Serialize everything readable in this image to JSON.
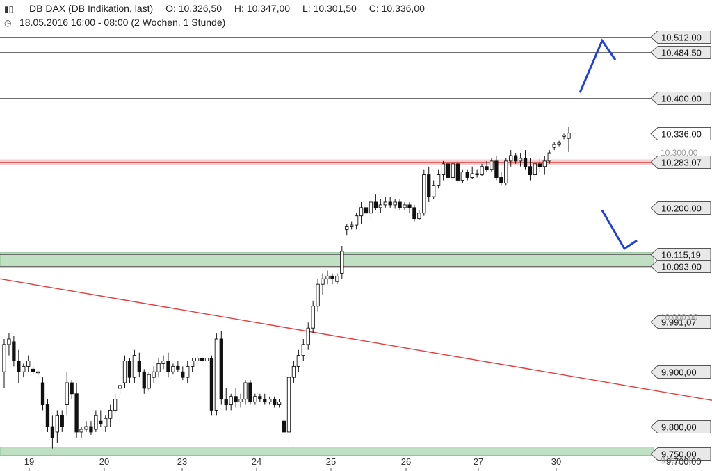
{
  "header": {
    "title": "DB DAX (DB Indikation, last)",
    "open": "O: 10.326,50",
    "high": "H: 10.347,00",
    "low": "L: 10.301,50",
    "close": "C: 10.336,00",
    "timeframe": "18.05.2016 16:00 - 08:00 (2 Wochen, 1 Stunde)",
    "chart_icon": "candlestick-icon",
    "clock_icon": "clock-icon"
  },
  "chart_data": {
    "type": "candlestick",
    "ylim": [
      9700,
      10540
    ],
    "x_ticks": [
      "19",
      "20",
      "23",
      "24",
      "25",
      "26",
      "27",
      "30"
    ],
    "level_lines": [
      {
        "value": 10512,
        "label": "10.512,00"
      },
      {
        "value": 10484.5,
        "label": "10.484,50"
      },
      {
        "value": 10400,
        "label": "10.400,00"
      },
      {
        "value": 10336,
        "label": "10.336,00",
        "style": "current"
      },
      {
        "value": 10283.07,
        "label": "10.283,07",
        "style": "resistance-red"
      },
      {
        "value": 10200,
        "label": "10.200,00"
      },
      {
        "value": 10115.19,
        "label": "10.115,19"
      },
      {
        "value": 10093,
        "label": "10.093,00"
      },
      {
        "value": 9991.07,
        "label": "9.991,07"
      },
      {
        "value": 9900,
        "label": "9.900,00"
      },
      {
        "value": 9800,
        "label": "9.800,00"
      },
      {
        "value": 9750,
        "label": "9.750,00"
      }
    ],
    "ghost_labels": [
      "10.300,00",
      "10.000,00",
      "9.737,00"
    ],
    "bottom_axis_label": "9.700,00",
    "support_zones": [
      {
        "from": 10093,
        "to": 10115.19
      },
      {
        "from": 9750,
        "to": 9760
      }
    ],
    "trendline": {
      "x": [
        0,
        1024
      ],
      "y": [
        10070,
        9848
      ]
    },
    "arrows": [
      {
        "direction": "up",
        "points": [
          [
            834,
            10410
          ],
          [
            866,
            10505
          ],
          [
            885,
            10470
          ]
        ]
      },
      {
        "direction": "down",
        "points": [
          [
            866,
            10195
          ],
          [
            898,
            10125
          ],
          [
            916,
            10140
          ]
        ]
      }
    ],
    "candles": [
      {
        "o": 9900,
        "h": 9960,
        "l": 9870,
        "c": 9950
      },
      {
        "o": 9950,
        "h": 9970,
        "l": 9930,
        "c": 9960
      },
      {
        "o": 9955,
        "h": 9965,
        "l": 9910,
        "c": 9920
      },
      {
        "o": 9920,
        "h": 9940,
        "l": 9880,
        "c": 9900
      },
      {
        "o": 9900,
        "h": 9915,
        "l": 9890,
        "c": 9910
      },
      {
        "o": 9910,
        "h": 9930,
        "l": 9900,
        "c": 9920
      },
      {
        "o": 9905,
        "h": 9910,
        "l": 9895,
        "c": 9900
      },
      {
        "o": 9900,
        "h": 9905,
        "l": 9890,
        "c": 9900
      },
      {
        "o": 9880,
        "h": 9890,
        "l": 9830,
        "c": 9840
      },
      {
        "o": 9840,
        "h": 9850,
        "l": 9790,
        "c": 9800
      },
      {
        "o": 9800,
        "h": 9820,
        "l": 9760,
        "c": 9780
      },
      {
        "o": 9790,
        "h": 9830,
        "l": 9770,
        "c": 9820
      },
      {
        "o": 9820,
        "h": 9830,
        "l": 9790,
        "c": 9800
      },
      {
        "o": 9840,
        "h": 9900,
        "l": 9820,
        "c": 9880
      },
      {
        "o": 9880,
        "h": 9885,
        "l": 9850,
        "c": 9860
      },
      {
        "o": 9860,
        "h": 9880,
        "l": 9780,
        "c": 9790
      },
      {
        "o": 9790,
        "h": 9800,
        "l": 9780,
        "c": 9795
      },
      {
        "o": 9795,
        "h": 9810,
        "l": 9790,
        "c": 9800
      },
      {
        "o": 9800,
        "h": 9810,
        "l": 9785,
        "c": 9790
      },
      {
        "o": 9795,
        "h": 9830,
        "l": 9790,
        "c": 9820
      },
      {
        "o": 9810,
        "h": 9830,
        "l": 9800,
        "c": 9805
      },
      {
        "o": 9800,
        "h": 9820,
        "l": 9790,
        "c": 9815
      },
      {
        "o": 9815,
        "h": 9840,
        "l": 9800,
        "c": 9830
      },
      {
        "o": 9830,
        "h": 9860,
        "l": 9825,
        "c": 9850
      },
      {
        "o": 9870,
        "h": 9880,
        "l": 9860,
        "c": 9875
      },
      {
        "o": 9880,
        "h": 9930,
        "l": 9870,
        "c": 9920
      },
      {
        "o": 9920,
        "h": 9925,
        "l": 9880,
        "c": 9890
      },
      {
        "o": 9890,
        "h": 9940,
        "l": 9880,
        "c": 9930
      },
      {
        "o": 9920,
        "h": 9935,
        "l": 9890,
        "c": 9900
      },
      {
        "o": 9900,
        "h": 9905,
        "l": 9860,
        "c": 9870
      },
      {
        "o": 9870,
        "h": 9900,
        "l": 9865,
        "c": 9895
      },
      {
        "o": 9890,
        "h": 9910,
        "l": 9880,
        "c": 9900
      },
      {
        "o": 9900,
        "h": 9925,
        "l": 9890,
        "c": 9915
      },
      {
        "o": 9915,
        "h": 9930,
        "l": 9905,
        "c": 9920
      },
      {
        "o": 9920,
        "h": 9935,
        "l": 9890,
        "c": 9900
      },
      {
        "o": 9900,
        "h": 9915,
        "l": 9895,
        "c": 9910
      },
      {
        "o": 9910,
        "h": 9920,
        "l": 9900,
        "c": 9905
      },
      {
        "o": 9900,
        "h": 9910,
        "l": 9885,
        "c": 9890
      },
      {
        "o": 9890,
        "h": 9920,
        "l": 9880,
        "c": 9910
      },
      {
        "o": 9910,
        "h": 9925,
        "l": 9900,
        "c": 9920
      },
      {
        "o": 9920,
        "h": 9930,
        "l": 9915,
        "c": 9925
      },
      {
        "o": 9925,
        "h": 9935,
        "l": 9915,
        "c": 9920
      },
      {
        "o": 9920,
        "h": 9930,
        "l": 9915,
        "c": 9925
      },
      {
        "o": 9925,
        "h": 9930,
        "l": 9820,
        "c": 9830
      },
      {
        "o": 9830,
        "h": 9970,
        "l": 9820,
        "c": 9960
      },
      {
        "o": 9960,
        "h": 9975,
        "l": 9840,
        "c": 9850
      },
      {
        "o": 9850,
        "h": 9870,
        "l": 9830,
        "c": 9840
      },
      {
        "o": 9840,
        "h": 9860,
        "l": 9830,
        "c": 9855
      },
      {
        "o": 9855,
        "h": 9870,
        "l": 9835,
        "c": 9845
      },
      {
        "o": 9845,
        "h": 9860,
        "l": 9835,
        "c": 9850
      },
      {
        "o": 9850,
        "h": 9885,
        "l": 9840,
        "c": 9880
      },
      {
        "o": 9880,
        "h": 9885,
        "l": 9840,
        "c": 9845
      },
      {
        "o": 9845,
        "h": 9860,
        "l": 9840,
        "c": 9855
      },
      {
        "o": 9855,
        "h": 9860,
        "l": 9845,
        "c": 9850
      },
      {
        "o": 9850,
        "h": 9860,
        "l": 9840,
        "c": 9845
      },
      {
        "o": 9845,
        "h": 9855,
        "l": 9840,
        "c": 9850
      },
      {
        "o": 9850,
        "h": 9855,
        "l": 9835,
        "c": 9840
      },
      {
        "o": 9840,
        "h": 9850,
        "l": 9835,
        "c": 9845
      },
      {
        "o": 9810,
        "h": 9815,
        "l": 9780,
        "c": 9790
      },
      {
        "o": 9790,
        "h": 9900,
        "l": 9770,
        "c": 9890
      },
      {
        "o": 9890,
        "h": 9920,
        "l": 9880,
        "c": 9910
      },
      {
        "o": 9910,
        "h": 9940,
        "l": 9900,
        "c": 9930
      },
      {
        "o": 9930,
        "h": 9960,
        "l": 9920,
        "c": 9950
      },
      {
        "o": 9950,
        "h": 9990,
        "l": 9940,
        "c": 9980
      },
      {
        "o": 9980,
        "h": 10030,
        "l": 9970,
        "c": 10020
      },
      {
        "o": 10020,
        "h": 10070,
        "l": 10010,
        "c": 10060
      },
      {
        "o": 10060,
        "h": 10080,
        "l": 10040,
        "c": 10070
      },
      {
        "o": 10070,
        "h": 10085,
        "l": 10060,
        "c": 10075
      },
      {
        "o": 10075,
        "h": 10080,
        "l": 10060,
        "c": 10070
      },
      {
        "o": 10065,
        "h": 10080,
        "l": 10060,
        "c": 10075
      },
      {
        "o": 10080,
        "h": 10130,
        "l": 10070,
        "c": 10120
      },
      {
        "o": 10160,
        "h": 10170,
        "l": 10150,
        "c": 10165
      },
      {
        "o": 10165,
        "h": 10175,
        "l": 10160,
        "c": 10168
      },
      {
        "o": 10168,
        "h": 10190,
        "l": 10160,
        "c": 10185
      },
      {
        "o": 10185,
        "h": 10210,
        "l": 10170,
        "c": 10200
      },
      {
        "o": 10200,
        "h": 10215,
        "l": 10175,
        "c": 10190
      },
      {
        "o": 10190,
        "h": 10220,
        "l": 10180,
        "c": 10210
      },
      {
        "o": 10210,
        "h": 10225,
        "l": 10195,
        "c": 10200
      },
      {
        "o": 10200,
        "h": 10215,
        "l": 10190,
        "c": 10205
      },
      {
        "o": 10205,
        "h": 10220,
        "l": 10200,
        "c": 10210
      },
      {
        "o": 10210,
        "h": 10220,
        "l": 10200,
        "c": 10205
      },
      {
        "o": 10205,
        "h": 10215,
        "l": 10198,
        "c": 10210
      },
      {
        "o": 10210,
        "h": 10215,
        "l": 10195,
        "c": 10200
      },
      {
        "o": 10200,
        "h": 10210,
        "l": 10195,
        "c": 10205
      },
      {
        "o": 10205,
        "h": 10210,
        "l": 10190,
        "c": 10200
      },
      {
        "o": 10200,
        "h": 10205,
        "l": 10175,
        "c": 10180
      },
      {
        "o": 10180,
        "h": 10195,
        "l": 10178,
        "c": 10190
      },
      {
        "o": 10190,
        "h": 10270,
        "l": 10185,
        "c": 10260
      },
      {
        "o": 10260,
        "h": 10275,
        "l": 10210,
        "c": 10220
      },
      {
        "o": 10220,
        "h": 10250,
        "l": 10215,
        "c": 10240
      },
      {
        "o": 10240,
        "h": 10270,
        "l": 10235,
        "c": 10260
      },
      {
        "o": 10260,
        "h": 10285,
        "l": 10250,
        "c": 10280
      },
      {
        "o": 10280,
        "h": 10290,
        "l": 10250,
        "c": 10255
      },
      {
        "o": 10255,
        "h": 10285,
        "l": 10250,
        "c": 10280
      },
      {
        "o": 10280,
        "h": 10285,
        "l": 10245,
        "c": 10250
      },
      {
        "o": 10250,
        "h": 10270,
        "l": 10245,
        "c": 10265
      },
      {
        "o": 10265,
        "h": 10270,
        "l": 10250,
        "c": 10255
      },
      {
        "o": 10255,
        "h": 10275,
        "l": 10252,
        "c": 10262
      },
      {
        "o": 10262,
        "h": 10270,
        "l": 10255,
        "c": 10260
      },
      {
        "o": 10260,
        "h": 10280,
        "l": 10258,
        "c": 10275
      },
      {
        "o": 10275,
        "h": 10285,
        "l": 10265,
        "c": 10270
      },
      {
        "o": 10270,
        "h": 10290,
        "l": 10265,
        "c": 10285
      },
      {
        "o": 10285,
        "h": 10295,
        "l": 10250,
        "c": 10255
      },
      {
        "o": 10255,
        "h": 10265,
        "l": 10240,
        "c": 10245
      },
      {
        "o": 10245,
        "h": 10290,
        "l": 10240,
        "c": 10285
      },
      {
        "o": 10285,
        "h": 10305,
        "l": 10275,
        "c": 10295
      },
      {
        "o": 10295,
        "h": 10300,
        "l": 10280,
        "c": 10285
      },
      {
        "o": 10285,
        "h": 10300,
        "l": 10275,
        "c": 10290
      },
      {
        "o": 10290,
        "h": 10305,
        "l": 10270,
        "c": 10275
      },
      {
        "o": 10275,
        "h": 10290,
        "l": 10250,
        "c": 10260
      },
      {
        "o": 10260,
        "h": 10285,
        "l": 10255,
        "c": 10280
      },
      {
        "o": 10280,
        "h": 10290,
        "l": 10265,
        "c": 10275
      },
      {
        "o": 10275,
        "h": 10295,
        "l": 10260,
        "c": 10285
      },
      {
        "o": 10285,
        "h": 10305,
        "l": 10280,
        "c": 10300
      },
      {
        "o": 10310,
        "h": 10320,
        "l": 10305,
        "c": 10315
      },
      {
        "o": 10315,
        "h": 10322,
        "l": 10312,
        "c": 10318
      },
      {
        "o": 10330,
        "h": 10335,
        "l": 10325,
        "c": 10332
      },
      {
        "o": 10326.5,
        "h": 10347,
        "l": 10301.5,
        "c": 10336
      }
    ]
  }
}
